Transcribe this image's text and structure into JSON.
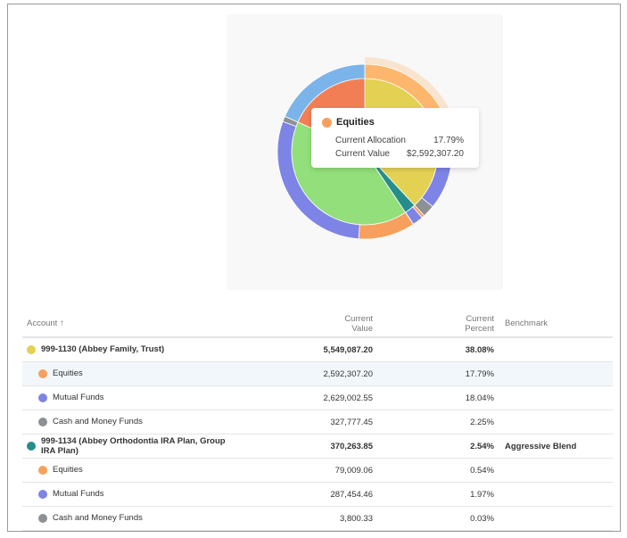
{
  "chart_data": {
    "type": "pie",
    "inner": [
      {
        "value": 38.08,
        "color": "#e3d153"
      },
      {
        "value": 2.54,
        "color": "#258d8a"
      },
      {
        "value": 41.0,
        "color": "#93df7b"
      },
      {
        "value": 18.38,
        "color": "#f27e55"
      }
    ],
    "outer": [
      {
        "value": 17.79,
        "color": "#fdb76d",
        "hover": true
      },
      {
        "value": 18.04,
        "color": "#7e84e6"
      },
      {
        "value": 2.25,
        "color": "#8d9095"
      },
      {
        "value": 0.54,
        "color": "#f7a05d"
      },
      {
        "value": 1.97,
        "color": "#7e84e6"
      },
      {
        "value": 0.03,
        "color": "#8d9095"
      },
      {
        "value": 10.5,
        "color": "#f7a05d"
      },
      {
        "value": 29.5,
        "color": "#7e84e6"
      },
      {
        "value": 1.0,
        "color": "#8d9095"
      },
      {
        "value": 18.38,
        "color": "#7bb4ea"
      }
    ]
  },
  "tooltip": {
    "title": "Equities",
    "color": "#f7a05d",
    "rows": [
      {
        "label": "Current Allocation",
        "value": "17.79%"
      },
      {
        "label": "Current Value",
        "value": "$2,592,307.20"
      }
    ]
  },
  "table": {
    "headers": {
      "account": "Account ↑",
      "value1": "Current",
      "value2": "Value",
      "pct1": "Current",
      "pct2": "Percent",
      "benchmark": "Benchmark"
    },
    "rows": [
      {
        "name": "999-1130 (Abbey Family, Trust)",
        "value": "5,549,087.20",
        "pct": "38.08%",
        "benchmark": "",
        "color": "#e3d153",
        "bold": true
      },
      {
        "name": "Equities",
        "value": "2,592,307.20",
        "pct": "17.79%",
        "benchmark": "",
        "color": "#f7a05d",
        "highlight": true
      },
      {
        "name": "Mutual Funds",
        "value": "2,629,002.55",
        "pct": "18.04%",
        "benchmark": "",
        "color": "#7e84e6"
      },
      {
        "name": "Cash and Money Funds",
        "value": "327,777.45",
        "pct": "2.25%",
        "benchmark": "",
        "color": "#8d9095"
      },
      {
        "name": "999-1134 (Abbey Orthodontia IRA Plan, Group IRA Plan)",
        "value": "370,263.85",
        "pct": "2.54%",
        "benchmark": "Aggressive Blend",
        "color": "#258d8a",
        "bold": true
      },
      {
        "name": "Equities",
        "value": "79,009.06",
        "pct": "0.54%",
        "benchmark": "",
        "color": "#f7a05d"
      },
      {
        "name": "Mutual Funds",
        "value": "287,454.46",
        "pct": "1.97%",
        "benchmark": "",
        "color": "#7e84e6"
      },
      {
        "name": "Cash and Money Funds",
        "value": "3,800.33",
        "pct": "0.03%",
        "benchmark": "",
        "color": "#8d9095"
      }
    ]
  }
}
